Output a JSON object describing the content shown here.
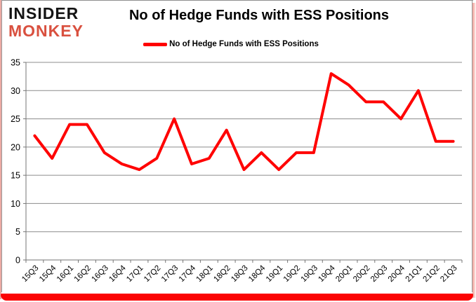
{
  "logo": {
    "line1": "INSIDER",
    "line2": "MONKEY",
    "line1_color": "#141414",
    "line2_color": "#d9503f"
  },
  "header": {
    "title": "No of Hedge Funds with ESS Positions"
  },
  "legend": {
    "label": "No of Hedge Funds with ESS Positions",
    "marker_color": "#ff0000"
  },
  "frame": {
    "bottom_bar_color": "#fb0404",
    "edge_pink_color": "#eba9a3",
    "border_gray_color": "#8e8e8e"
  },
  "chart_data": {
    "type": "line",
    "title": "No of Hedge Funds with ESS Positions",
    "categories": [
      "15Q3",
      "15Q4",
      "16Q1",
      "16Q2",
      "16Q3",
      "16Q4",
      "17Q1",
      "17Q2",
      "17Q3",
      "17Q4",
      "18Q1",
      "18Q2",
      "18Q3",
      "18Q4",
      "19Q1",
      "19Q2",
      "19Q3",
      "19Q4",
      "20Q1",
      "20Q2",
      "20Q3",
      "20Q4",
      "21Q1",
      "21Q2",
      "21Q3"
    ],
    "series": [
      {
        "name": "No of Hedge Funds with ESS Positions",
        "color": "#ff0000",
        "values": [
          22,
          18,
          24,
          24,
          19,
          17,
          16,
          18,
          25,
          17,
          18,
          23,
          16,
          19,
          16,
          19,
          19,
          33,
          31,
          28,
          28,
          25,
          30,
          21,
          21
        ]
      }
    ],
    "xlabel": "",
    "ylabel": "",
    "ylim": [
      0,
      35
    ],
    "yticks": [
      0,
      5,
      10,
      15,
      20,
      25,
      30,
      35
    ],
    "grid": "horizontal",
    "grid_color": "#8c8c8c",
    "axis_color": "#757575",
    "tick_label_color": "#000000",
    "legend_position": "top"
  }
}
